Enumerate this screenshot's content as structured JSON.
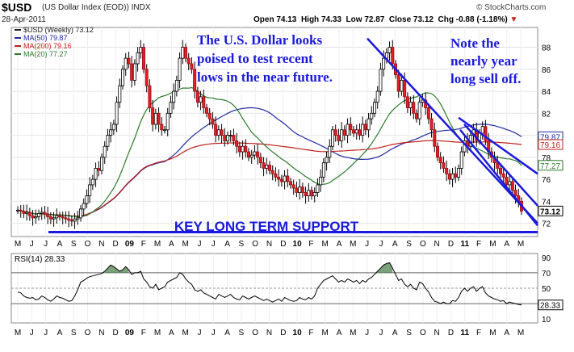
{
  "header": {
    "symbol": "$USD",
    "description": "(US Dollar Index (EOD))",
    "exchange": "INDX",
    "date": "28-Apr-2011",
    "open_label": "Open",
    "open": "74.13",
    "high_label": "High",
    "high": "74.33",
    "low_label": "Low",
    "low": "72.87",
    "close_label": "Close",
    "close": "73.12",
    "chg_label": "Chg",
    "chg": "-0.88 (-1.18%)",
    "copyright": "© StockCharts.com"
  },
  "legend": [
    {
      "text": "$USD (Weekly) 73.12",
      "color": "#222222"
    },
    {
      "text": "MA(50) 79.87",
      "color": "#1f2a9e"
    },
    {
      "text": "MA(200) 79.16",
      "color": "#c0201a"
    },
    {
      "text": "MA(20) 77.27",
      "color": "#2c7a2c"
    }
  ],
  "annotations": {
    "left_text": [
      "The U.S. Dollar looks",
      "poised to test recent",
      "lows in the near future."
    ],
    "right_text": [
      "Note the",
      "nearly year",
      "long sell off."
    ],
    "support_text": "KEY LONG TERM SUPPORT",
    "color": "#1a1adb"
  },
  "price_badges": [
    {
      "text": "79.87",
      "value": 79.87,
      "color": "#1f2a9e"
    },
    {
      "text": "79.16",
      "value": 79.16,
      "color": "#c0201a"
    },
    {
      "text": "77.27",
      "value": 77.27,
      "color": "#2c7a2c"
    },
    {
      "text": "73.12",
      "value": 73.12,
      "color": "#000000"
    }
  ],
  "rsi_label": "RSI(14) 28.33",
  "rsi_badge": "28.33",
  "chart_data": [
    {
      "type": "candlestick",
      "title": "$USD (US Dollar Index (EOD)) Weekly",
      "y_ticks": [
        72,
        74,
        76,
        78,
        80,
        82,
        84,
        86,
        88
      ],
      "ylim": [
        70.8,
        89.8
      ],
      "x_labels": [
        "M",
        "J",
        "J",
        "A",
        "S",
        "O",
        "N",
        "D",
        "09",
        "F",
        "M",
        "A",
        "M",
        "J",
        "J",
        "A",
        "S",
        "O",
        "N",
        "D",
        "10",
        "F",
        "M",
        "A",
        "M",
        "J",
        "J",
        "A",
        "S",
        "O",
        "N",
        "D",
        "11",
        "F",
        "M",
        "A",
        "M"
      ],
      "weekly_close": [
        73.2,
        73.1,
        72.9,
        73.0,
        72.7,
        72.5,
        72.6,
        72.9,
        73.0,
        72.8,
        72.6,
        72.4,
        72.5,
        72.7,
        72.6,
        72.5,
        72.4,
        72.3,
        72.2,
        72.4,
        72.5,
        73.3,
        73.8,
        74.5,
        75.5,
        76.0,
        77.0,
        76.8,
        78.0,
        79.0,
        80.0,
        80.5,
        81.0,
        83.0,
        84.5,
        86.0,
        87.0,
        86.5,
        85.0,
        86.5,
        87.5,
        88.0,
        86.0,
        84.5,
        82.5,
        81.0,
        82.0,
        81.0,
        80.5,
        80.5,
        82.0,
        83.0,
        84.0,
        85.0,
        87.0,
        88.0,
        87.0,
        86.5,
        86.0,
        84.0,
        83.0,
        83.5,
        82.5,
        82.0,
        81.5,
        81.0,
        80.0,
        80.5,
        80.0,
        79.5,
        80.0,
        80.0,
        79.5,
        79.0,
        78.5,
        79.0,
        78.5,
        78.0,
        78.2,
        78.5,
        78.0,
        77.5,
        77.0,
        77.3,
        76.8,
        76.5,
        76.2,
        76.0,
        75.8,
        76.3,
        75.8,
        75.5,
        75.2,
        74.8,
        75.3,
        74.8,
        74.5,
        75.0,
        74.5,
        74.8,
        75.5,
        76.2,
        77.5,
        78.0,
        79.0,
        80.5,
        80.0,
        79.5,
        80.5,
        80.0,
        81.0,
        80.5,
        80.2,
        80.5,
        80.0,
        81.0,
        80.5,
        81.5,
        82.0,
        83.0,
        84.0,
        86.0,
        87.0,
        87.5,
        88.0,
        86.5,
        85.5,
        84.0,
        85.0,
        83.5,
        82.5,
        83.0,
        82.0,
        81.5,
        83.0,
        83.2,
        82.5,
        81.5,
        80.5,
        79.0,
        78.0,
        77.5,
        77.0,
        76.5,
        76.0,
        76.5,
        76.2,
        77.0,
        78.5,
        79.5,
        79.0,
        80.0,
        80.5,
        79.5,
        80.2,
        80.8,
        79.5,
        78.5,
        78.0,
        77.5,
        77.0,
        76.5,
        76.2,
        75.5,
        75.8,
        75.0,
        74.5,
        74.0,
        73.12
      ],
      "moving_averages": [
        {
          "name": "MA(50)",
          "last": 79.87
        },
        {
          "name": "MA(200)",
          "last": 79.16
        },
        {
          "name": "MA(20)",
          "last": 77.27
        }
      ],
      "support_level": 71.2,
      "trendlines": [
        {
          "from": [
            1,
            88.8
          ],
          "to": [
            55,
            72.0
          ]
        },
        {
          "from": [
            1,
            81.6
          ],
          "to": [
            55,
            76.5
          ]
        },
        {
          "from": [
            1,
            81.0
          ],
          "to": [
            55,
            73.6
          ]
        },
        {
          "from": [
            1,
            80.5
          ],
          "to": [
            55,
            71.8
          ]
        }
      ]
    },
    {
      "type": "line",
      "title": "RSI(14) 28.33",
      "y_ticks": [
        10,
        30,
        50,
        70,
        90
      ],
      "ylim": [
        5,
        95
      ],
      "reference_lines": [
        30,
        50,
        70
      ],
      "values": [
        45,
        44,
        40,
        38,
        37,
        38,
        35,
        36,
        40,
        38,
        35,
        33,
        36,
        40,
        38,
        37,
        35,
        33,
        34,
        40,
        48,
        58,
        60,
        63,
        65,
        66,
        67,
        68,
        69,
        72,
        76,
        80,
        78,
        75,
        72,
        74,
        78,
        74,
        68,
        70,
        70,
        72,
        62,
        58,
        52,
        50,
        55,
        48,
        50,
        52,
        58,
        60,
        62,
        64,
        70,
        68,
        62,
        58,
        55,
        48,
        46,
        48,
        44,
        42,
        40,
        38,
        36,
        42,
        40,
        38,
        40,
        42,
        38,
        36,
        35,
        40,
        38,
        36,
        38,
        40,
        38,
        36,
        34,
        36,
        34,
        32,
        34,
        36,
        33,
        38,
        36,
        34,
        33,
        34,
        38,
        36,
        35,
        38,
        36,
        40,
        50,
        55,
        60,
        62,
        64,
        66,
        62,
        58,
        60,
        58,
        62,
        60,
        58,
        60,
        56,
        60,
        58,
        62,
        64,
        68,
        72,
        76,
        80,
        82,
        83,
        76,
        68,
        60,
        62,
        55,
        52,
        55,
        50,
        48,
        58,
        56,
        50,
        45,
        38,
        33,
        32,
        30,
        32,
        30,
        30,
        34,
        33,
        38,
        46,
        50,
        46,
        50,
        52,
        46,
        50,
        52,
        44,
        40,
        38,
        36,
        35,
        33,
        34,
        30,
        32,
        31,
        30,
        29,
        28.33
      ]
    }
  ]
}
